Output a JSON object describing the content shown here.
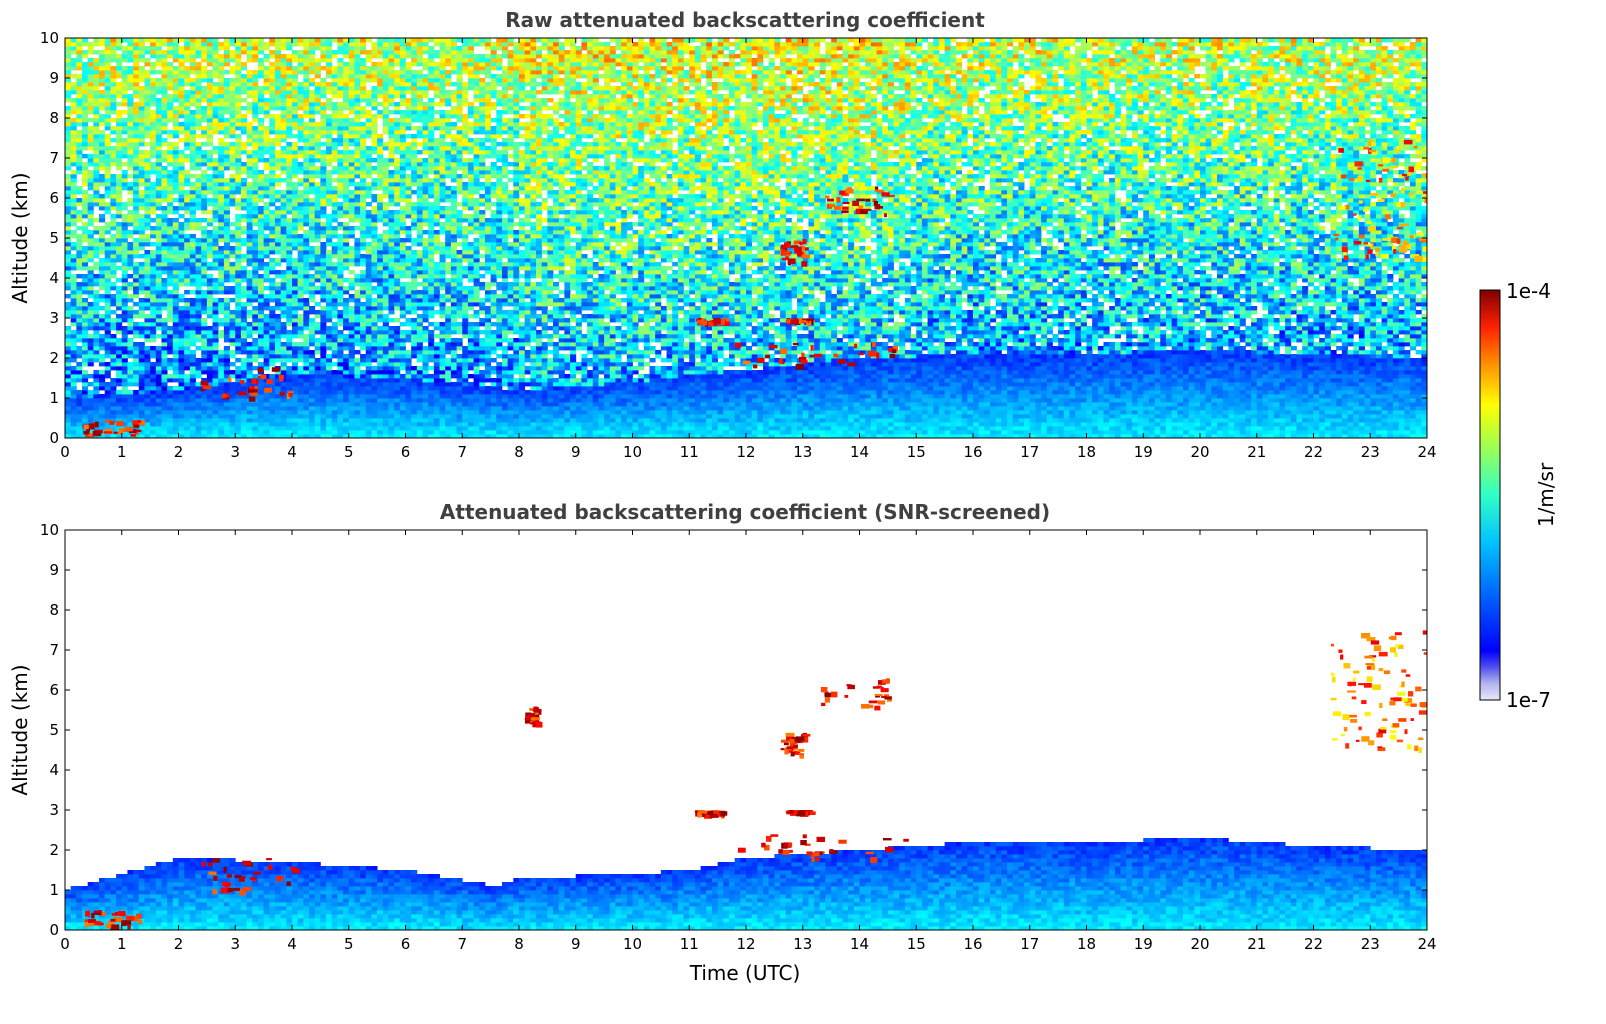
{
  "chart_data": [
    {
      "type": "heatmap",
      "title": "Raw attenuated backscattering coefficient",
      "xlabel": "",
      "ylabel": "Altitude (km)",
      "xlim": [
        0,
        24
      ],
      "ylim": [
        0,
        10
      ],
      "x_ticks": [
        "0",
        "1",
        "2",
        "3",
        "4",
        "5",
        "6",
        "7",
        "8",
        "9",
        "10",
        "11",
        "12",
        "13",
        "14",
        "15",
        "16",
        "17",
        "18",
        "19",
        "20",
        "21",
        "22",
        "23",
        "24"
      ],
      "y_ticks": [
        "0",
        "1",
        "2",
        "3",
        "4",
        "5",
        "6",
        "7",
        "8",
        "9",
        "10"
      ],
      "screened": false,
      "features": [
        {
          "kind": "background_noise",
          "note": "noisy aerosol/molecular signal across all altitudes, increasing toward upper levels"
        },
        {
          "kind": "boundary_layer",
          "top_km": [
            [
              0,
              1.0
            ],
            [
              2,
              1.2
            ],
            [
              4,
              1.6
            ],
            [
              6,
              1.5
            ],
            [
              8,
              1.2
            ],
            [
              10,
              1.4
            ],
            [
              12,
              1.7
            ],
            [
              14,
              2.0
            ],
            [
              16,
              2.1
            ],
            [
              18,
              2.1
            ],
            [
              20,
              2.2
            ],
            [
              22,
              2.1
            ],
            [
              24,
              2.0
            ]
          ]
        },
        {
          "kind": "cloud",
          "x": [
            0.3,
            1.3
          ],
          "y": [
            0.1,
            0.5
          ]
        },
        {
          "kind": "cloud",
          "x": [
            2.3,
            4.0
          ],
          "y": [
            1.0,
            1.8
          ]
        },
        {
          "kind": "cloud",
          "x": [
            11.1,
            11.6
          ],
          "y": [
            2.9,
            3.0
          ]
        },
        {
          "kind": "cloud",
          "x": [
            12.7,
            13.1
          ],
          "y": [
            2.95,
            3.0
          ]
        },
        {
          "kind": "cloud",
          "x": [
            11.8,
            14.8
          ],
          "y": [
            1.8,
            2.4
          ]
        },
        {
          "kind": "cloud",
          "x": [
            12.6,
            13.0
          ],
          "y": [
            4.4,
            5.0
          ]
        },
        {
          "kind": "cloud",
          "x": [
            13.3,
            14.5
          ],
          "y": [
            5.6,
            6.3
          ]
        },
        {
          "kind": "cirrus",
          "x": [
            22.3,
            24.0
          ],
          "y": [
            4.5,
            7.5
          ]
        }
      ]
    },
    {
      "type": "heatmap",
      "title": "Attenuated backscattering coefficient (SNR-screened)",
      "xlabel": "Time (UTC)",
      "ylabel": "Altitude (km)",
      "xlim": [
        0,
        24
      ],
      "ylim": [
        0,
        10
      ],
      "x_ticks": [
        "0",
        "1",
        "2",
        "3",
        "4",
        "5",
        "6",
        "7",
        "8",
        "9",
        "10",
        "11",
        "12",
        "13",
        "14",
        "15",
        "16",
        "17",
        "18",
        "19",
        "20",
        "21",
        "22",
        "23",
        "24"
      ],
      "y_ticks": [
        "0",
        "1",
        "2",
        "3",
        "4",
        "5",
        "6",
        "7",
        "8",
        "9",
        "10"
      ],
      "screened": true,
      "features": [
        {
          "kind": "boundary_layer",
          "top_km": [
            [
              0,
              1.0
            ],
            [
              2,
              1.8
            ],
            [
              4,
              1.7
            ],
            [
              6,
              1.5
            ],
            [
              7.6,
              1.1
            ],
            [
              8,
              1.3
            ],
            [
              10,
              1.4
            ],
            [
              11,
              1.5
            ],
            [
              12,
              1.8
            ],
            [
              14,
              2.0
            ],
            [
              16,
              2.2
            ],
            [
              18,
              2.2
            ],
            [
              20,
              2.3
            ],
            [
              22,
              2.1
            ],
            [
              24,
              2.0
            ]
          ]
        },
        {
          "kind": "cloud",
          "x": [
            0.3,
            1.3
          ],
          "y": [
            0.1,
            0.5
          ]
        },
        {
          "kind": "cloud",
          "x": [
            2.3,
            4.0
          ],
          "y": [
            1.0,
            1.8
          ]
        },
        {
          "kind": "cloud",
          "x": [
            8.1,
            8.3
          ],
          "y": [
            5.2,
            5.6
          ]
        },
        {
          "kind": "cloud",
          "x": [
            11.1,
            11.6
          ],
          "y": [
            2.9,
            3.0
          ]
        },
        {
          "kind": "cloud",
          "x": [
            12.7,
            13.1
          ],
          "y": [
            2.95,
            3.0
          ]
        },
        {
          "kind": "cloud",
          "x": [
            11.8,
            14.8
          ],
          "y": [
            1.8,
            2.4
          ]
        },
        {
          "kind": "cloud",
          "x": [
            12.6,
            13.0
          ],
          "y": [
            4.4,
            5.0
          ]
        },
        {
          "kind": "cloud",
          "x": [
            13.3,
            14.5
          ],
          "y": [
            5.6,
            6.3
          ]
        },
        {
          "kind": "cirrus",
          "x": [
            22.3,
            24.0
          ],
          "y": [
            4.5,
            7.5
          ]
        }
      ]
    }
  ],
  "colorbar": {
    "label": "1/m/sr",
    "max_label": "1e-4",
    "min_label": "1e-7",
    "scale": "log",
    "colormap": "jet",
    "colors": [
      "#e8e8fa",
      "#b4b4ee",
      "#7070e8",
      "#0000ff",
      "#0050ff",
      "#00a0ff",
      "#00e0ff",
      "#20ffd0",
      "#70ff80",
      "#c0ff30",
      "#ffff00",
      "#ffb000",
      "#ff6000",
      "#ff1000",
      "#b00000",
      "#7f0000"
    ]
  }
}
